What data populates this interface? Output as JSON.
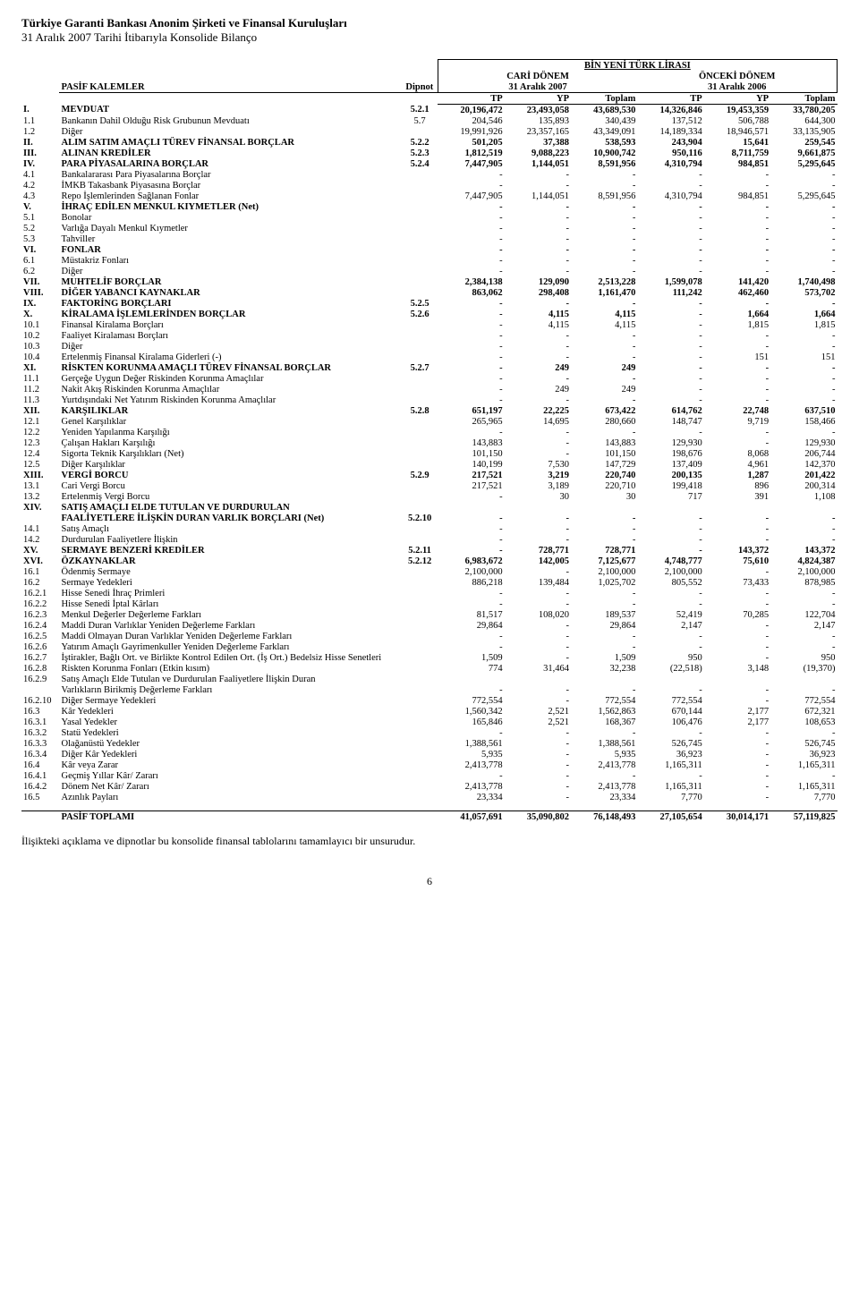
{
  "header": {
    "company": "Türkiye Garanti Bankası Anonim Şirketi ve Finansal Kuruluşları",
    "subtitle": "31 Aralık 2007 Tarihi İtibarıyla Konsolide Bilanço"
  },
  "table_meta": {
    "currency_line": "BİN YENİ TÜRK LİRASI",
    "section_label": "PASİF KALEMLER",
    "note_label": "Dipnot",
    "current_period": "CARİ DÖNEM",
    "current_date": "31 Aralık 2007",
    "prior_period": "ÖNCEKİ DÖNEM",
    "prior_date": "31 Aralık 2006",
    "col_tp": "TP",
    "col_yp": "YP",
    "col_total": "Toplam"
  },
  "rows": [
    {
      "code": "I.",
      "desc": "MEVDUAT",
      "note": "5.2.1",
      "tp": "20,196,472",
      "yp": "23,493,058",
      "tot": "43,689,530",
      "ptp": "14,326,846",
      "pyp": "19,453,359",
      "ptot": "33,780,205",
      "bold": true
    },
    {
      "code": "1.1",
      "desc": "Bankanın Dahil Olduğu Risk Grubunun Mevduatı",
      "note": "5.7",
      "tp": "204,546",
      "yp": "135,893",
      "tot": "340,439",
      "ptp": "137,512",
      "pyp": "506,788",
      "ptot": "644,300"
    },
    {
      "code": "1.2",
      "desc": "Diğer",
      "note": "",
      "tp": "19,991,926",
      "yp": "23,357,165",
      "tot": "43,349,091",
      "ptp": "14,189,334",
      "pyp": "18,946,571",
      "ptot": "33,135,905"
    },
    {
      "code": "II.",
      "desc": "ALIM SATIM AMAÇLI TÜREV FİNANSAL BORÇLAR",
      "note": "5.2.2",
      "tp": "501,205",
      "yp": "37,388",
      "tot": "538,593",
      "ptp": "243,904",
      "pyp": "15,641",
      "ptot": "259,545",
      "bold": true
    },
    {
      "code": "III.",
      "desc": "ALINAN KREDİLER",
      "note": "5.2.3",
      "tp": "1,812,519",
      "yp": "9,088,223",
      "tot": "10,900,742",
      "ptp": "950,116",
      "pyp": "8,711,759",
      "ptot": "9,661,875",
      "bold": true
    },
    {
      "code": "IV.",
      "desc": "PARA PİYASALARINA BORÇLAR",
      "note": "5.2.4",
      "tp": "7,447,905",
      "yp": "1,144,051",
      "tot": "8,591,956",
      "ptp": "4,310,794",
      "pyp": "984,851",
      "ptot": "5,295,645",
      "bold": true
    },
    {
      "code": "4.1",
      "desc": "Bankalararası Para Piyasalarına Borçlar",
      "note": "",
      "tp": "-",
      "yp": "-",
      "tot": "-",
      "ptp": "-",
      "pyp": "-",
      "ptot": "-"
    },
    {
      "code": "4.2",
      "desc": "İMKB Takasbank Piyasasına Borçlar",
      "note": "",
      "tp": "-",
      "yp": "-",
      "tot": "-",
      "ptp": "-",
      "pyp": "-",
      "ptot": "-"
    },
    {
      "code": "4.3",
      "desc": "Repo İşlemlerinden Sağlanan Fonlar",
      "note": "",
      "tp": "7,447,905",
      "yp": "1,144,051",
      "tot": "8,591,956",
      "ptp": "4,310,794",
      "pyp": "984,851",
      "ptot": "5,295,645"
    },
    {
      "code": "V.",
      "desc": "İHRAÇ EDİLEN MENKUL KIYMETLER (Net)",
      "note": "",
      "tp": "-",
      "yp": "-",
      "tot": "-",
      "ptp": "-",
      "pyp": "-",
      "ptot": "-",
      "bold": true
    },
    {
      "code": "5.1",
      "desc": "Bonolar",
      "note": "",
      "tp": "-",
      "yp": "-",
      "tot": "-",
      "ptp": "-",
      "pyp": "-",
      "ptot": "-"
    },
    {
      "code": "5.2",
      "desc": "Varlığa Dayalı Menkul Kıymetler",
      "note": "",
      "tp": "-",
      "yp": "-",
      "tot": "-",
      "ptp": "-",
      "pyp": "-",
      "ptot": "-"
    },
    {
      "code": "5.3",
      "desc": "Tahviller",
      "note": "",
      "tp": "-",
      "yp": "-",
      "tot": "-",
      "ptp": "-",
      "pyp": "-",
      "ptot": "-"
    },
    {
      "code": "VI.",
      "desc": "FONLAR",
      "note": "",
      "tp": "-",
      "yp": "-",
      "tot": "-",
      "ptp": "-",
      "pyp": "-",
      "ptot": "-",
      "bold": true
    },
    {
      "code": "6.1",
      "desc": "Müstakriz Fonları",
      "note": "",
      "tp": "-",
      "yp": "-",
      "tot": "-",
      "ptp": "-",
      "pyp": "-",
      "ptot": "-"
    },
    {
      "code": "6.2",
      "desc": "Diğer",
      "note": "",
      "tp": "-",
      "yp": "-",
      "tot": "-",
      "ptp": "-",
      "pyp": "-",
      "ptot": "-"
    },
    {
      "code": "VII.",
      "desc": "MUHTELİF BORÇLAR",
      "note": "",
      "tp": "2,384,138",
      "yp": "129,090",
      "tot": "2,513,228",
      "ptp": "1,599,078",
      "pyp": "141,420",
      "ptot": "1,740,498",
      "bold": true
    },
    {
      "code": "VIII.",
      "desc": "DİĞER YABANCI KAYNAKLAR",
      "note": "",
      "tp": "863,062",
      "yp": "298,408",
      "tot": "1,161,470",
      "ptp": "111,242",
      "pyp": "462,460",
      "ptot": "573,702",
      "bold": true
    },
    {
      "code": "IX.",
      "desc": "FAKTORİNG BORÇLARI",
      "note": "5.2.5",
      "tp": "-",
      "yp": "-",
      "tot": "-",
      "ptp": "-",
      "pyp": "-",
      "ptot": "-",
      "bold": true
    },
    {
      "code": "X.",
      "desc": "KİRALAMA İŞLEMLERİNDEN BORÇLAR",
      "note": "5.2.6",
      "tp": "-",
      "yp": "4,115",
      "tot": "4,115",
      "ptp": "-",
      "pyp": "1,664",
      "ptot": "1,664",
      "bold": true
    },
    {
      "code": "10.1",
      "desc": "Finansal Kiralama Borçları",
      "note": "",
      "tp": "-",
      "yp": "4,115",
      "tot": "4,115",
      "ptp": "-",
      "pyp": "1,815",
      "ptot": "1,815"
    },
    {
      "code": "10.2",
      "desc": "Faaliyet Kiralaması Borçları",
      "note": "",
      "tp": "-",
      "yp": "-",
      "tot": "-",
      "ptp": "-",
      "pyp": "-",
      "ptot": "-"
    },
    {
      "code": "10.3",
      "desc": "Diğer",
      "note": "",
      "tp": "-",
      "yp": "-",
      "tot": "-",
      "ptp": "-",
      "pyp": "-",
      "ptot": "-"
    },
    {
      "code": "10.4",
      "desc": "Ertelenmiş Finansal Kiralama Giderleri (-)",
      "note": "",
      "tp": "-",
      "yp": "-",
      "tot": "-",
      "ptp": "-",
      "pyp": "151",
      "ptot": "151"
    },
    {
      "code": "XI.",
      "desc": "RİSKTEN KORUNMA AMAÇLI TÜREV FİNANSAL BORÇLAR",
      "note": "5.2.7",
      "tp": "-",
      "yp": "249",
      "tot": "249",
      "ptp": "-",
      "pyp": "-",
      "ptot": "-",
      "bold": true
    },
    {
      "code": "11.1",
      "desc": "Gerçeğe Uygun Değer Riskinden Korunma Amaçlılar",
      "note": "",
      "tp": "-",
      "yp": "-",
      "tot": "-",
      "ptp": "-",
      "pyp": "-",
      "ptot": "-"
    },
    {
      "code": "11.2",
      "desc": "Nakit Akış Riskinden Korunma Amaçlılar",
      "note": "",
      "tp": "-",
      "yp": "249",
      "tot": "249",
      "ptp": "-",
      "pyp": "-",
      "ptot": "-"
    },
    {
      "code": "11.3",
      "desc": "Yurtdışındaki Net Yatırım Riskinden Korunma Amaçlılar",
      "note": "",
      "tp": "-",
      "yp": "-",
      "tot": "-",
      "ptp": "-",
      "pyp": "-",
      "ptot": "-"
    },
    {
      "code": "XII.",
      "desc": "KARŞILIKLAR",
      "note": "5.2.8",
      "tp": "651,197",
      "yp": "22,225",
      "tot": "673,422",
      "ptp": "614,762",
      "pyp": "22,748",
      "ptot": "637,510",
      "bold": true
    },
    {
      "code": "12.1",
      "desc": "Genel Karşılıklar",
      "note": "",
      "tp": "265,965",
      "yp": "14,695",
      "tot": "280,660",
      "ptp": "148,747",
      "pyp": "9,719",
      "ptot": "158,466"
    },
    {
      "code": "12.2",
      "desc": "Yeniden Yapılanma Karşılığı",
      "note": "",
      "tp": "-",
      "yp": "-",
      "tot": "-",
      "ptp": "-",
      "pyp": "-",
      "ptot": "-"
    },
    {
      "code": "12.3",
      "desc": "Çalışan Hakları Karşılığı",
      "note": "",
      "tp": "143,883",
      "yp": "-",
      "tot": "143,883",
      "ptp": "129,930",
      "pyp": "-",
      "ptot": "129,930"
    },
    {
      "code": "12.4",
      "desc": "Sigorta Teknik Karşılıkları (Net)",
      "note": "",
      "tp": "101,150",
      "yp": "-",
      "tot": "101,150",
      "ptp": "198,676",
      "pyp": "8,068",
      "ptot": "206,744"
    },
    {
      "code": "12.5",
      "desc": "Diğer Karşılıklar",
      "note": "",
      "tp": "140,199",
      "yp": "7,530",
      "tot": "147,729",
      "ptp": "137,409",
      "pyp": "4,961",
      "ptot": "142,370"
    },
    {
      "code": "XIII.",
      "desc": "VERGİ BORCU",
      "note": "5.2.9",
      "tp": "217,521",
      "yp": "3,219",
      "tot": "220,740",
      "ptp": "200,135",
      "pyp": "1,287",
      "ptot": "201,422",
      "bold": true
    },
    {
      "code": "13.1",
      "desc": "Cari Vergi Borcu",
      "note": "",
      "tp": "217,521",
      "yp": "3,189",
      "tot": "220,710",
      "ptp": "199,418",
      "pyp": "896",
      "ptot": "200,314"
    },
    {
      "code": "13.2",
      "desc": "Ertelenmiş Vergi Borcu",
      "note": "",
      "tp": "-",
      "yp": "30",
      "tot": "30",
      "ptp": "717",
      "pyp": "391",
      "ptot": "1,108"
    },
    {
      "code": "XIV.",
      "desc": "SATIŞ AMAÇLI ELDE TUTULAN VE DURDURULAN",
      "note": "",
      "tp": "",
      "yp": "",
      "tot": "",
      "ptp": "",
      "pyp": "",
      "ptot": "",
      "bold": true
    },
    {
      "code": "",
      "desc": "FAALİYETLERE İLİŞKİN DURAN VARLIK BORÇLARI (Net)",
      "note": "5.2.10",
      "tp": "-",
      "yp": "-",
      "tot": "-",
      "ptp": "-",
      "pyp": "-",
      "ptot": "-",
      "bold": true
    },
    {
      "code": "14.1",
      "desc": "Satış Amaçlı",
      "note": "",
      "tp": "-",
      "yp": "-",
      "tot": "-",
      "ptp": "-",
      "pyp": "-",
      "ptot": "-"
    },
    {
      "code": "14.2",
      "desc": "Durdurulan Faaliyetlere İlişkin",
      "note": "",
      "tp": "-",
      "yp": "-",
      "tot": "-",
      "ptp": "-",
      "pyp": "-",
      "ptot": "-"
    },
    {
      "code": "XV.",
      "desc": "SERMAYE BENZERİ KREDİLER",
      "note": "5.2.11",
      "tp": "-",
      "yp": "728,771",
      "tot": "728,771",
      "ptp": "-",
      "pyp": "143,372",
      "ptot": "143,372",
      "bold": true
    },
    {
      "code": "XVI.",
      "desc": "ÖZKAYNAKLAR",
      "note": "5.2.12",
      "tp": "6,983,672",
      "yp": "142,005",
      "tot": "7,125,677",
      "ptp": "4,748,777",
      "pyp": "75,610",
      "ptot": "4,824,387",
      "bold": true
    },
    {
      "code": "16.1",
      "desc": "Ödenmiş Sermaye",
      "note": "",
      "tp": "2,100,000",
      "yp": "-",
      "tot": "2,100,000",
      "ptp": "2,100,000",
      "pyp": "-",
      "ptot": "2,100,000"
    },
    {
      "code": "16.2",
      "desc": "Sermaye Yedekleri",
      "note": "",
      "tp": "886,218",
      "yp": "139,484",
      "tot": "1,025,702",
      "ptp": "805,552",
      "pyp": "73,433",
      "ptot": "878,985"
    },
    {
      "code": "16.2.1",
      "desc": "Hisse Senedi İhraç Primleri",
      "note": "",
      "tp": "-",
      "yp": "-",
      "tot": "-",
      "ptp": "-",
      "pyp": "-",
      "ptot": "-"
    },
    {
      "code": "16.2.2",
      "desc": "Hisse Senedi İptal Kârları",
      "note": "",
      "tp": "-",
      "yp": "-",
      "tot": "-",
      "ptp": "-",
      "pyp": "-",
      "ptot": "-"
    },
    {
      "code": "16.2.3",
      "desc": "Menkul Değerler Değerleme Farkları",
      "note": "",
      "tp": "81,517",
      "yp": "108,020",
      "tot": "189,537",
      "ptp": "52,419",
      "pyp": "70,285",
      "ptot": "122,704"
    },
    {
      "code": "16.2.4",
      "desc": "Maddi Duran Varlıklar Yeniden Değerleme Farkları",
      "note": "",
      "tp": "29,864",
      "yp": "-",
      "tot": "29,864",
      "ptp": "2,147",
      "pyp": "-",
      "ptot": "2,147"
    },
    {
      "code": "16.2.5",
      "desc": "Maddi Olmayan Duran Varlıklar Yeniden Değerleme Farkları",
      "note": "",
      "tp": "-",
      "yp": "-",
      "tot": "-",
      "ptp": "-",
      "pyp": "-",
      "ptot": "-"
    },
    {
      "code": "16.2.6",
      "desc": "Yatırım Amaçlı Gayrimenkuller Yeniden Değerleme Farkları",
      "note": "",
      "tp": "-",
      "yp": "-",
      "tot": "-",
      "ptp": "-",
      "pyp": "-",
      "ptot": "-"
    },
    {
      "code": "16.2.7",
      "desc": "İştirakler, Bağlı Ort. ve Birlikte Kontrol Edilen Ort. (İş Ort.) Bedelsiz Hisse Senetleri",
      "note": "",
      "tp": "1,509",
      "yp": "-",
      "tot": "1,509",
      "ptp": "950",
      "pyp": "-",
      "ptot": "950"
    },
    {
      "code": "16.2.8",
      "desc": "Riskten Korunma Fonları (Etkin kısım)",
      "note": "",
      "tp": "774",
      "yp": "31,464",
      "tot": "32,238",
      "ptp": "(22,518)",
      "pyp": "3,148",
      "ptot": "(19,370)"
    },
    {
      "code": "16.2.9",
      "desc": "Satış Amaçlı Elde Tutulan ve Durdurulan Faaliyetlere İlişkin Duran",
      "note": "",
      "tp": "",
      "yp": "",
      "tot": "",
      "ptp": "",
      "pyp": "",
      "ptot": ""
    },
    {
      "code": "",
      "desc": "Varlıkların Birikmiş Değerleme Farkları",
      "note": "",
      "tp": "-",
      "yp": "-",
      "tot": "-",
      "ptp": "-",
      "pyp": "-",
      "ptot": "-"
    },
    {
      "code": "16.2.10",
      "desc": "Diğer Sermaye Yedekleri",
      "note": "",
      "tp": "772,554",
      "yp": "-",
      "tot": "772,554",
      "ptp": "772,554",
      "pyp": "-",
      "ptot": "772,554"
    },
    {
      "code": "16.3",
      "desc": "Kâr Yedekleri",
      "note": "",
      "tp": "1,560,342",
      "yp": "2,521",
      "tot": "1,562,863",
      "ptp": "670,144",
      "pyp": "2,177",
      "ptot": "672,321"
    },
    {
      "code": "16.3.1",
      "desc": "Yasal Yedekler",
      "note": "",
      "tp": "165,846",
      "yp": "2,521",
      "tot": "168,367",
      "ptp": "106,476",
      "pyp": "2,177",
      "ptot": "108,653"
    },
    {
      "code": "16.3.2",
      "desc": "Statü Yedekleri",
      "note": "",
      "tp": "-",
      "yp": "-",
      "tot": "-",
      "ptp": "-",
      "pyp": "-",
      "ptot": "-"
    },
    {
      "code": "16.3.3",
      "desc": "Olağanüstü Yedekler",
      "note": "",
      "tp": "1,388,561",
      "yp": "-",
      "tot": "1,388,561",
      "ptp": "526,745",
      "pyp": "-",
      "ptot": "526,745"
    },
    {
      "code": "16.3.4",
      "desc": "Diğer Kâr Yedekleri",
      "note": "",
      "tp": "5,935",
      "yp": "-",
      "tot": "5,935",
      "ptp": "36,923",
      "pyp": "-",
      "ptot": "36,923"
    },
    {
      "code": "16.4",
      "desc": "Kâr veya Zarar",
      "note": "",
      "tp": "2,413,778",
      "yp": "-",
      "tot": "2,413,778",
      "ptp": "1,165,311",
      "pyp": "-",
      "ptot": "1,165,311"
    },
    {
      "code": "16.4.1",
      "desc": "Geçmiş Yıllar Kâr/ Zararı",
      "note": "",
      "tp": "-",
      "yp": "-",
      "tot": "-",
      "ptp": "-",
      "pyp": "-",
      "ptot": "-"
    },
    {
      "code": "16.4.2",
      "desc": "Dönem Net Kâr/ Zararı",
      "note": "",
      "tp": "2,413,778",
      "yp": "-",
      "tot": "2,413,778",
      "ptp": "1,165,311",
      "pyp": "-",
      "ptot": "1,165,311"
    },
    {
      "code": "16.5",
      "desc": "Azınlık Payları",
      "note": "",
      "tp": "23,334",
      "yp": "-",
      "tot": "23,334",
      "ptp": "7,770",
      "pyp": "-",
      "ptot": "7,770"
    }
  ],
  "total": {
    "label": "PASİF TOPLAMI",
    "tp": "41,057,691",
    "yp": "35,090,802",
    "tot": "76,148,493",
    "ptp": "27,105,654",
    "pyp": "30,014,171",
    "ptot": "57,119,825"
  },
  "footnote": "İlişikteki açıklama ve dipnotlar bu konsolide finansal tablolarını tamamlayıcı bir unsurudur.",
  "pagenum": "6"
}
